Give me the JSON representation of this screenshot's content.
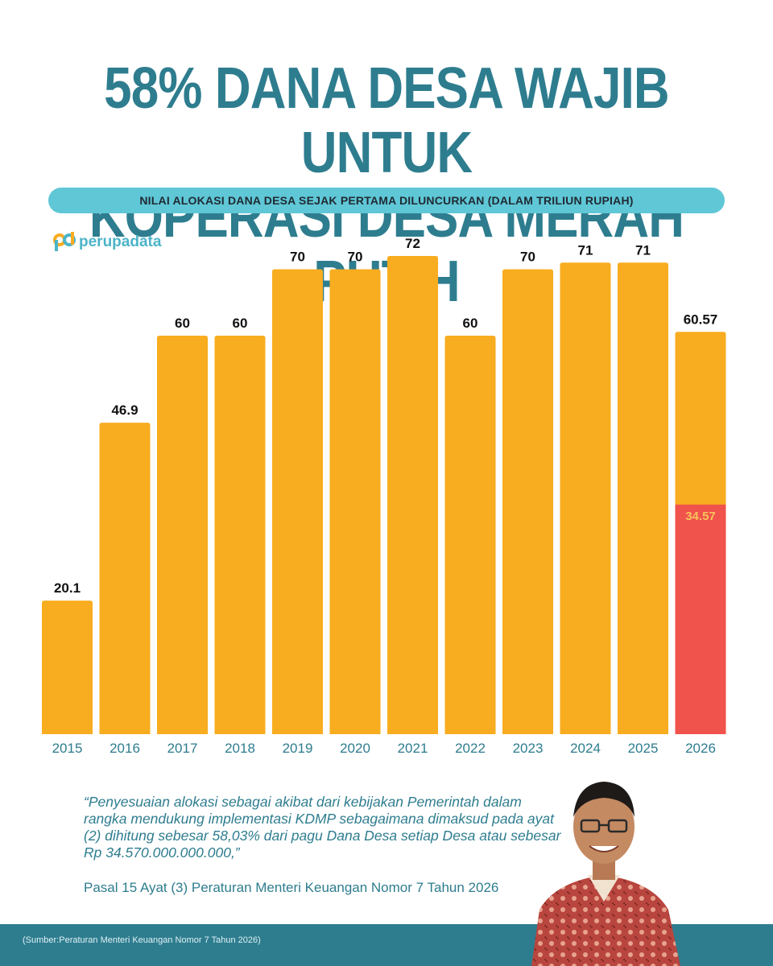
{
  "header": {
    "title_line1": "58% DANA DESA WAJIB UNTUK",
    "title_line2": "KOPERASI DESA MERAH PUTIH",
    "subtitle": "NILAI ALOKASI DANA DESA SEJAK PERTAMA DILUNCURKAN (DALAM TRILIUN RUPIAH)"
  },
  "brand": {
    "name": "perupadata",
    "icon": "perupadata-logo-icon"
  },
  "colors": {
    "title": "#2e7d8f",
    "bar": "#f8ac1f",
    "highlight": "#f0524c",
    "highlight_label": "#f8c35a",
    "pill": "#5fc7d6",
    "footer": "#2e7d8f",
    "year_label": "#2e7d8f"
  },
  "chart_data": {
    "type": "bar",
    "categories": [
      "2015",
      "2016",
      "2017",
      "2018",
      "2019",
      "2020",
      "2021",
      "2022",
      "2023",
      "2024",
      "2025",
      "2026"
    ],
    "values": [
      20.1,
      46.9,
      60,
      60,
      70,
      70,
      72,
      60,
      70,
      71,
      71,
      60.57
    ],
    "value_labels": [
      "20.1",
      "46.9",
      "60",
      "60",
      "70",
      "70",
      "72",
      "60",
      "70",
      "71",
      "71",
      "60.57"
    ],
    "highlight": {
      "category": "2026",
      "value": 34.57,
      "label": "34.57"
    },
    "ylim": [
      0,
      72
    ],
    "grid": false,
    "legend": "none"
  },
  "quote": {
    "text": "“Penyesuaian alokasi sebagai akibat dari kebijakan Pemerintah dalam rangka mendukung implementasi KDMP sebagaimana dimaksud pada ayat (2) dihitung sebesar 58,03% dari pagu Dana Desa setiap Desa atau sebesar Rp 34.570.000.000.000,”",
    "citation": "Pasal 15 Ayat (3) Peraturan Menteri Keuangan Nomor 7 Tahun 2026"
  },
  "footer": {
    "source": "(Sumber:Peraturan Menteri Keuangan Nomor 7 Tahun 2026)"
  },
  "portrait": {
    "icon": "official-portrait-illustration"
  }
}
